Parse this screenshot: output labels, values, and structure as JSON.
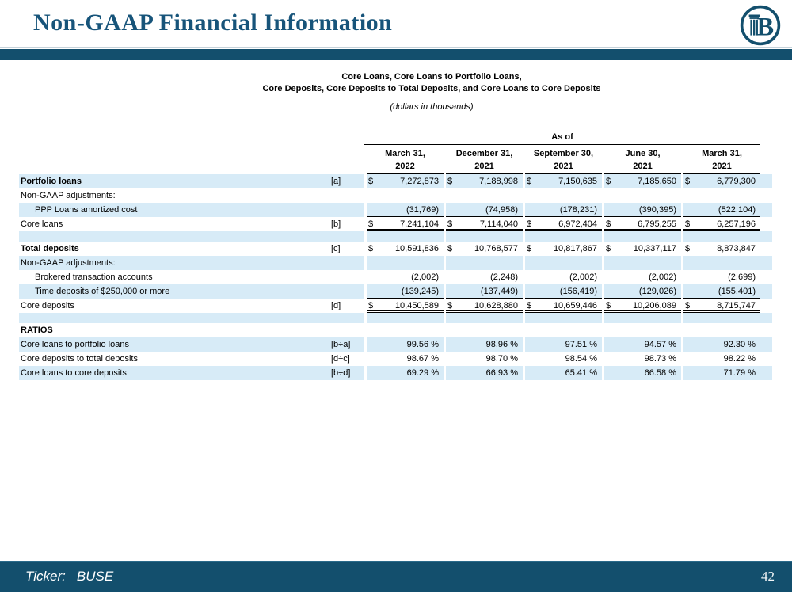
{
  "header": {
    "title": "Non-GAAP Financial Information",
    "logo_letter": "B"
  },
  "colors": {
    "accent_dark_blue": "#134f6d",
    "row_highlight_blue": "#d7ebf7",
    "title_blue": "#17547a"
  },
  "table": {
    "title_line1": "Core Loans, Core Loans to Portfolio Loans,",
    "title_line2": "Core Deposits, Core Deposits to Total Deposits, and Core Loans to Core Deposits",
    "subtitle": "(dollars in thousands)",
    "as_of_label": "As of",
    "currency_symbol": "$",
    "columns": [
      {
        "line1": "March 31,",
        "line2": "2022"
      },
      {
        "line1": "December 31,",
        "line2": "2021"
      },
      {
        "line1": "September 30,",
        "line2": "2021"
      },
      {
        "line1": "June 30,",
        "line2": "2021"
      },
      {
        "line1": "March 31,",
        "line2": "2021"
      }
    ],
    "rows": [
      {
        "label": "Portfolio loans",
        "ref": "[a]",
        "bold": true,
        "shaded": true,
        "dollar": true,
        "values": [
          "7,272,873",
          "7,188,998",
          "7,150,635",
          "7,185,650",
          "6,779,300"
        ],
        "underline": "none"
      },
      {
        "label": "Non-GAAP adjustments:",
        "ref": "",
        "shaded": false,
        "dollar": false,
        "values": [
          "",
          "",
          "",
          "",
          ""
        ],
        "underline": "none"
      },
      {
        "label": "PPP Loans amortized cost",
        "ref": "",
        "indent": true,
        "shaded": true,
        "dollar": false,
        "values": [
          "(31,769)",
          "(74,958)",
          "(178,231)",
          "(390,395)",
          "(522,104)"
        ],
        "underline": "single"
      },
      {
        "label": "Core loans",
        "ref": "[b]",
        "shaded": false,
        "dollar": true,
        "values": [
          "7,241,104",
          "7,114,040",
          "6,972,404",
          "6,795,255",
          "6,257,196"
        ],
        "underline": "double"
      },
      {
        "label": "",
        "ref": "",
        "shaded": true,
        "spacer": true,
        "values": [
          "",
          "",
          "",
          "",
          ""
        ],
        "underline": "none"
      },
      {
        "label": "Total deposits",
        "ref": "[c]",
        "bold": true,
        "shaded": false,
        "dollar": true,
        "values": [
          "10,591,836",
          "10,768,577",
          "10,817,867",
          "10,337,117",
          "8,873,847"
        ],
        "underline": "none"
      },
      {
        "label": "Non-GAAP adjustments:",
        "ref": "",
        "shaded": true,
        "dollar": false,
        "values": [
          "",
          "",
          "",
          "",
          ""
        ],
        "underline": "none"
      },
      {
        "label": "Brokered transaction accounts",
        "ref": "",
        "indent": true,
        "shaded": false,
        "dollar": false,
        "values": [
          "(2,002)",
          "(2,248)",
          "(2,002)",
          "(2,002)",
          "(2,699)"
        ],
        "underline": "none"
      },
      {
        "label": "Time deposits of $250,000 or more",
        "ref": "",
        "indent": true,
        "shaded": true,
        "dollar": false,
        "values": [
          "(139,245)",
          "(137,449)",
          "(156,419)",
          "(129,026)",
          "(155,401)"
        ],
        "underline": "single"
      },
      {
        "label": "Core deposits",
        "ref": "[d]",
        "shaded": false,
        "dollar": true,
        "values": [
          "10,450,589",
          "10,628,880",
          "10,659,446",
          "10,206,089",
          "8,715,747"
        ],
        "underline": "double"
      },
      {
        "label": "",
        "ref": "",
        "shaded": true,
        "spacer": true,
        "values": [
          "",
          "",
          "",
          "",
          ""
        ],
        "underline": "none"
      },
      {
        "label": "RATIOS",
        "ref": "",
        "bold": true,
        "shaded": false,
        "dollar": false,
        "values": [
          "",
          "",
          "",
          "",
          ""
        ],
        "underline": "none"
      },
      {
        "label": "Core loans to portfolio loans",
        "ref": "[b÷a]",
        "shaded": true,
        "dollar": false,
        "values": [
          "99.56 %",
          "98.96 %",
          "97.51 %",
          "94.57 %",
          "92.30 %"
        ],
        "underline": "none"
      },
      {
        "label": "Core deposits to total deposits",
        "ref": "[d÷c]",
        "shaded": false,
        "dollar": false,
        "values": [
          "98.67 %",
          "98.70 %",
          "98.54 %",
          "98.73 %",
          "98.22 %"
        ],
        "underline": "none"
      },
      {
        "label": "Core loans to core deposits",
        "ref": "[b÷d]",
        "shaded": true,
        "dollar": false,
        "values": [
          "69.29 %",
          "66.93 %",
          "65.41 %",
          "66.58 %",
          "71.79 %"
        ],
        "underline": "none"
      }
    ]
  },
  "footer": {
    "ticker_label": "Ticker:",
    "ticker_value": "BUSE",
    "page_number": "42"
  }
}
